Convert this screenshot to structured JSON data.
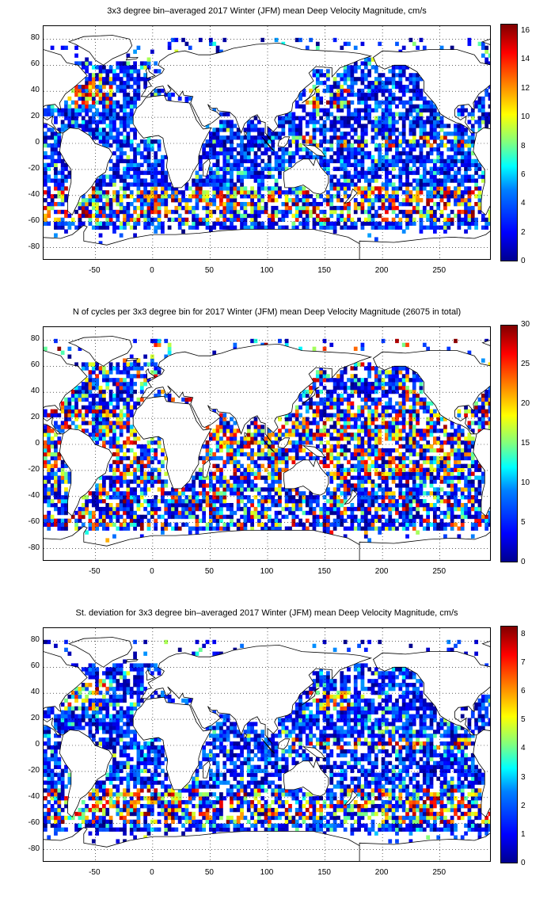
{
  "panels": [
    {
      "id": "mean",
      "title": "3x3 degree bin–averaged 2017 Winter (JFM) mean Deep Velocity Magnitude, cm/s",
      "colorbar": {
        "min": 0,
        "max": 16.5,
        "ticks": [
          "0",
          "2",
          "4",
          "6",
          "8",
          "10",
          "12",
          "14",
          "16"
        ],
        "tick_values": [
          0,
          2,
          4,
          6,
          8,
          10,
          12,
          14,
          16
        ]
      },
      "dominant": "low",
      "hot": "bands"
    },
    {
      "id": "count",
      "title": "N of cycles per 3x3 degree bin for 2017 Winter (JFM) mean Deep Velocity Magnitude (26075 in total)",
      "colorbar": {
        "min": 0,
        "max": 30,
        "ticks": [
          "0",
          "5",
          "10",
          "15",
          "20",
          "25",
          "30"
        ],
        "tick_values": [
          0,
          5,
          10,
          15,
          20,
          25,
          30
        ]
      },
      "dominant": "mixed",
      "hot": "scatter"
    },
    {
      "id": "std",
      "title": "St. deviation for 3x3 degree bin–averaged 2017 Winter (JFM) mean Deep Velocity Magnitude, cm/s",
      "colorbar": {
        "min": 0,
        "max": 8.3,
        "ticks": [
          "0",
          "1",
          "2",
          "3",
          "4",
          "5",
          "6",
          "7",
          "8"
        ],
        "tick_values": [
          0,
          1,
          2,
          3,
          4,
          5,
          6,
          7,
          8
        ]
      },
      "dominant": "low",
      "hot": "bands"
    }
  ],
  "axes": {
    "x_range": [
      -95,
      295
    ],
    "y_range": [
      -90,
      90
    ],
    "x_ticks": [
      "-50",
      "0",
      "50",
      "100",
      "150",
      "200",
      "250"
    ],
    "x_tick_values": [
      -50,
      0,
      50,
      100,
      150,
      200,
      250
    ],
    "y_ticks": [
      "80",
      "60",
      "40",
      "20",
      "0",
      "-20",
      "-40",
      "-60",
      "-80"
    ],
    "y_tick_values": [
      80,
      60,
      40,
      20,
      0,
      -20,
      -40,
      -60,
      -80
    ],
    "grid": "dotted"
  },
  "colormap": "jet"
}
